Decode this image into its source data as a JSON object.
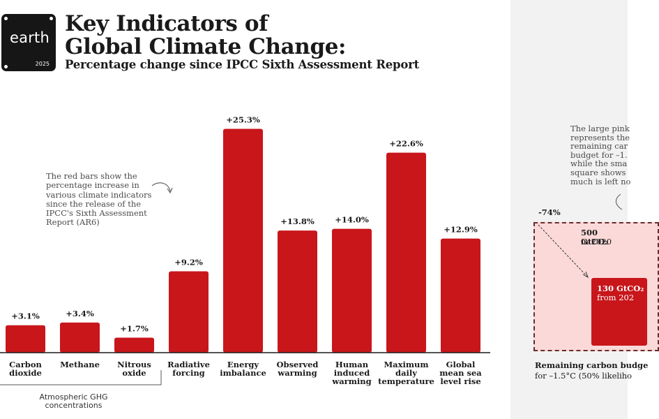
{
  "logo": {
    "word": "earth",
    "year": "2025"
  },
  "header": {
    "title_line1": "Key Indicators of",
    "title_line2": "Global Climate Change:",
    "subtitle": "Percentage change since IPCC Sixth Assessment Report"
  },
  "annotation": {
    "lines": [
      "The red bars show the",
      "percentage increase in",
      "various climate indicators",
      "since the release of the",
      "IPCC's Sixth Assessment",
      "Report (AR6)"
    ]
  },
  "chart_data": {
    "type": "bar",
    "title": "Key Indicators of Global Climate Change: Percentage change since IPCC Sixth Assessment Report",
    "categories": [
      [
        "Carbon",
        "dioxide"
      ],
      [
        "Methane"
      ],
      [
        "Nitrous",
        "oxide"
      ],
      [
        "Radiative",
        "forcing"
      ],
      [
        "Energy",
        "imbalance"
      ],
      [
        "Observed",
        "warming"
      ],
      [
        "Human",
        "induced",
        "warming"
      ],
      [
        "Maximum",
        "daily",
        "temperature"
      ],
      [
        "Global",
        "mean sea",
        "level rise"
      ]
    ],
    "values": [
      3.1,
      3.4,
      1.7,
      9.2,
      25.3,
      13.8,
      14.0,
      22.6,
      12.9
    ],
    "value_labels": [
      "+3.1%",
      "+3.4%",
      "+1.7%",
      "+9.2%",
      "+25.3%",
      "+13.8%",
      "+14.0%",
      "+22.6%",
      "+12.9%"
    ],
    "bar_color": "#c8161b",
    "ylim": [
      0,
      26.6
    ],
    "group": {
      "label_lines": [
        "Atmospheric GHG",
        "concentrations"
      ],
      "categories": [
        0,
        1,
        2
      ]
    },
    "grid": false
  },
  "panel": {
    "note_lines": [
      "The large pink",
      "represents the",
      "remaining car",
      "budget for –1.",
      "while the sma",
      "square shows",
      "much is left no"
    ],
    "percent": "-74%",
    "big_value": "500 GtCO₂",
    "big_sub": "in 2020",
    "small_value": "130 GtCO₂",
    "small_sub": "from 202",
    "budget_title": "Remaining carbon budge",
    "budget_sub": "for –1.5°C (50% likeliho",
    "accent_color": "#c8161b",
    "pink_color": "#fbd9d9"
  }
}
